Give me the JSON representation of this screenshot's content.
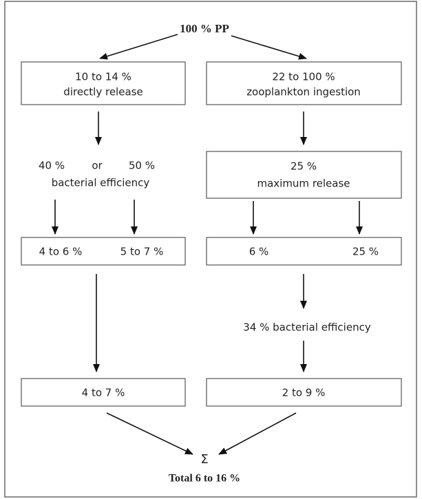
{
  "top": "100 % PP",
  "left": {
    "box1": [
      "10 to 14 %",
      "directly release"
    ],
    "labels": [
      "40 %",
      "or",
      "50 %",
      "bacterial efficiency"
    ],
    "box2": [
      "4 to 6 %",
      "5 to 7 %"
    ],
    "box3": "4 to 7 %"
  },
  "right": {
    "box1": [
      "22 to 100 %",
      "zooplankton ingestion"
    ],
    "box2": [
      "25 %",
      "maximum release"
    ],
    "box3": [
      "6 %",
      "25 %"
    ],
    "label": "34 % bacterial efficiency",
    "box4": "2 to 9 %"
  },
  "sum": {
    "symbol": "Σ",
    "total": "Total 6 to 16 %"
  }
}
